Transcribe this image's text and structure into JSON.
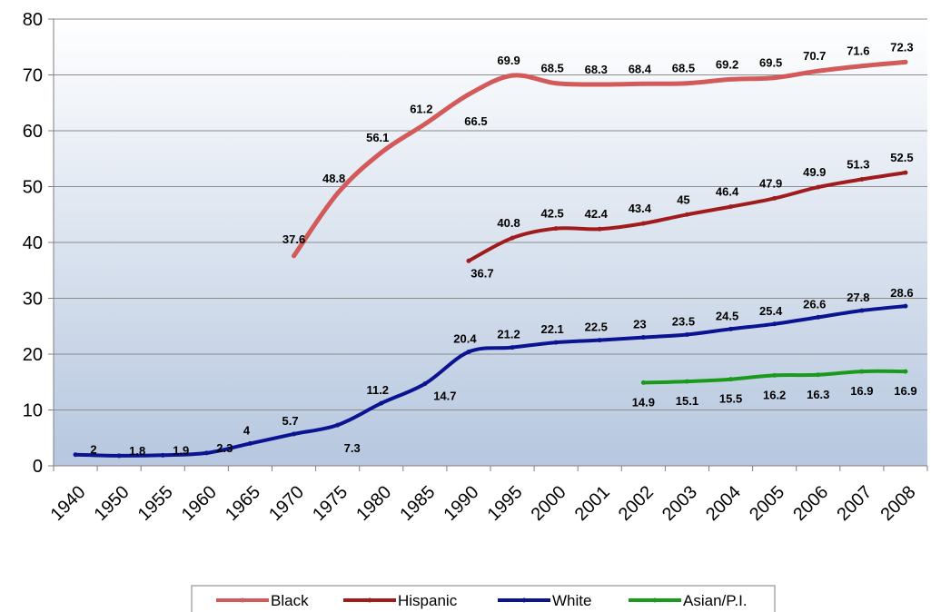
{
  "chart_data": {
    "type": "line",
    "categories": [
      "1940",
      "1950",
      "1955",
      "1960",
      "1965",
      "1970",
      "1975",
      "1980",
      "1985",
      "1990",
      "1995",
      "2000",
      "2001",
      "2002",
      "2003",
      "2004",
      "2005",
      "2006",
      "2007",
      "2008"
    ],
    "ylim": [
      0,
      80
    ],
    "yticks": [
      0,
      10,
      20,
      30,
      40,
      50,
      60,
      70,
      80
    ],
    "grid": true,
    "legend_position": "bottom",
    "series": [
      {
        "name": "Black",
        "color": "#d25a5a",
        "values": [
          null,
          null,
          null,
          null,
          null,
          37.6,
          48.8,
          56.1,
          61.2,
          66.5,
          69.9,
          68.5,
          68.3,
          68.4,
          68.5,
          69.2,
          69.5,
          70.7,
          71.6,
          72.3
        ]
      },
      {
        "name": "Hispanic",
        "color": "#a01c1c",
        "values": [
          null,
          null,
          null,
          null,
          null,
          null,
          null,
          null,
          null,
          36.7,
          40.8,
          42.5,
          42.4,
          43.4,
          45,
          46.4,
          47.9,
          49.9,
          51.3,
          52.5
        ]
      },
      {
        "name": "White",
        "color": "#0a1490",
        "values": [
          2,
          1.8,
          1.9,
          2.3,
          4,
          5.7,
          7.3,
          11.2,
          14.7,
          20.4,
          21.2,
          22.1,
          22.5,
          23,
          23.5,
          24.5,
          25.4,
          26.6,
          27.8,
          28.6
        ]
      },
      {
        "name": "Asian/P.I.",
        "color": "#1a9a1a",
        "values": [
          null,
          null,
          null,
          null,
          null,
          null,
          null,
          null,
          null,
          null,
          null,
          null,
          null,
          14.9,
          15.1,
          15.5,
          16.2,
          16.3,
          16.9,
          16.9
        ]
      }
    ]
  }
}
